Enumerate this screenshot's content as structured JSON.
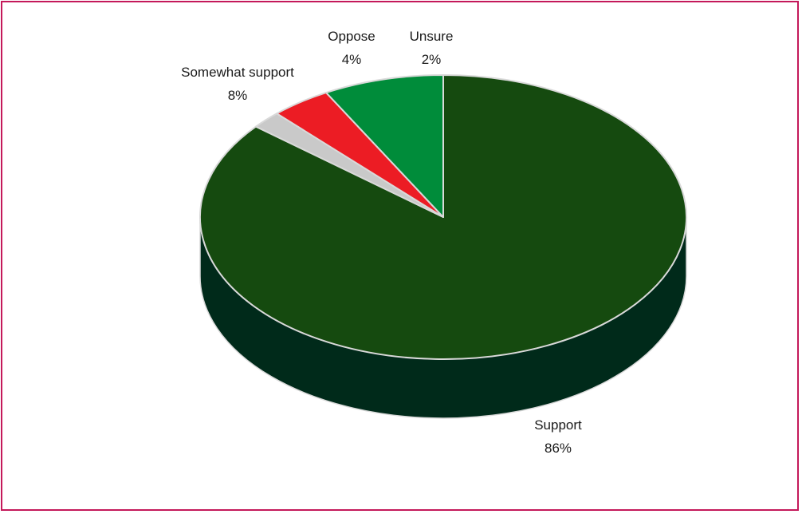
{
  "chart_data": {
    "type": "pie",
    "title": "",
    "three_d": true,
    "slices": [
      {
        "label": "Support",
        "percent_label": "86%",
        "value": 86,
        "color": "#154a0f",
        "side_color": "#002a1a"
      },
      {
        "label": "Unsure",
        "percent_label": "2%",
        "value": 2,
        "color": "#c9c9c9",
        "side_color": "#8f8f8f"
      },
      {
        "label": "Oppose",
        "percent_label": "4%",
        "value": 4,
        "color": "#ec1c24",
        "side_color": "#9a1216"
      },
      {
        "label": "Somewhat support",
        "percent_label": "8%",
        "value": 8,
        "color": "#008c3a",
        "side_color": "#005a25"
      }
    ]
  },
  "frame": {
    "border_color": "#c4195a"
  }
}
